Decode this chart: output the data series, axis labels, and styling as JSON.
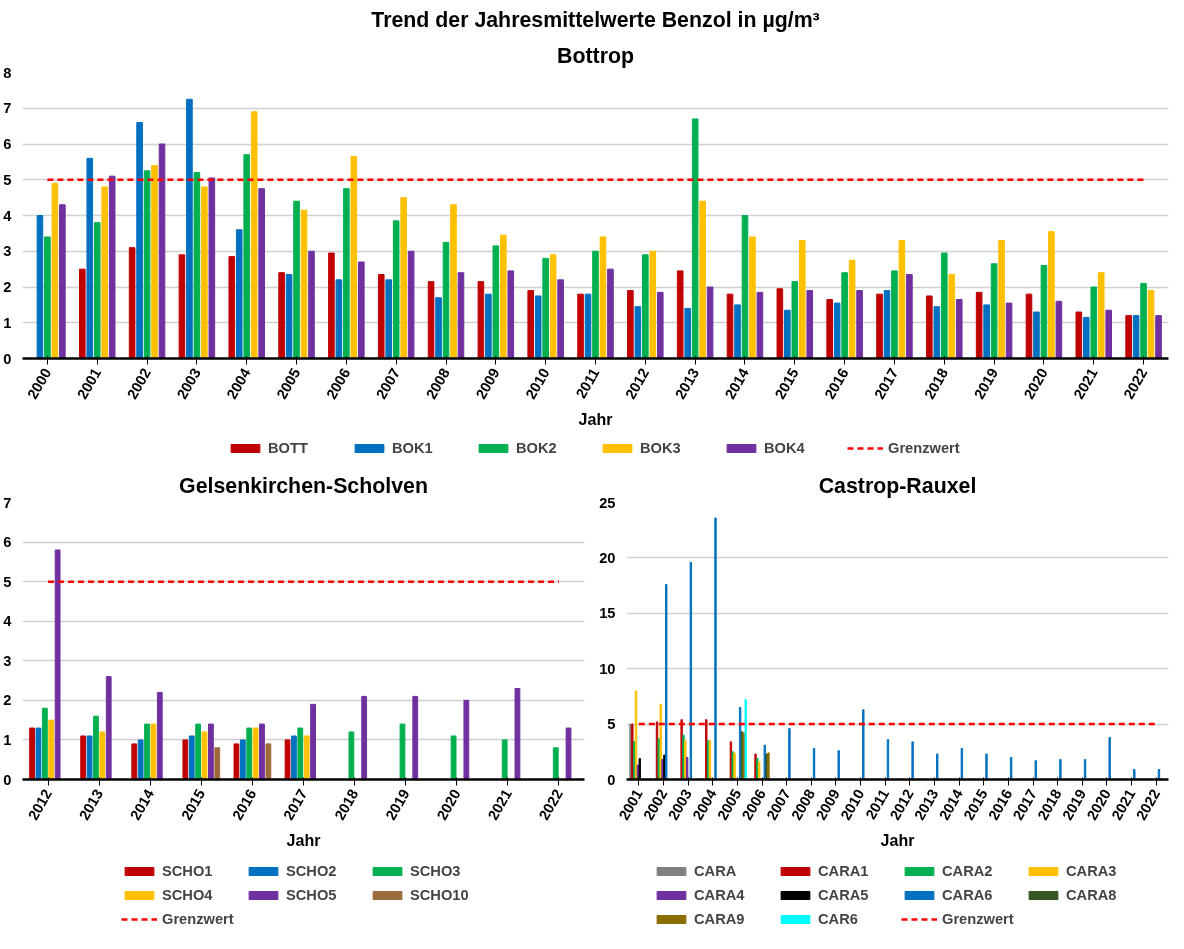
{
  "chart_data": [
    {
      "type": "bar",
      "title": "Trend der Jahresmittelwerte Benzol in µg/m³",
      "subtitle": "Bottrop",
      "xlabel": "Jahr",
      "categories": [
        "2000",
        "2001",
        "2002",
        "2003",
        "2004",
        "2005",
        "2006",
        "2007",
        "2008",
        "2009",
        "2010",
        "2011",
        "2012",
        "2013",
        "2014",
        "2015",
        "2016",
        "2017",
        "2018",
        "2019",
        "2020",
        "2021",
        "2022"
      ],
      "series": [
        {
          "name": "BOTT",
          "color": "#c00000",
          "values": [
            null,
            2.5,
            3.1,
            2.9,
            2.85,
            2.4,
            2.95,
            2.35,
            2.15,
            2.15,
            1.9,
            1.8,
            1.9,
            2.45,
            1.8,
            1.95,
            1.65,
            1.8,
            1.75,
            1.85,
            1.8,
            1.3,
            1.2
          ]
        },
        {
          "name": "BOK1",
          "color": "#0070c0",
          "values": [
            4.0,
            5.6,
            6.6,
            7.25,
            3.6,
            2.35,
            2.2,
            2.2,
            1.7,
            1.8,
            1.75,
            1.8,
            1.45,
            1.4,
            1.5,
            1.35,
            1.55,
            1.9,
            1.45,
            1.5,
            1.3,
            1.15,
            1.2
          ]
        },
        {
          "name": "BOK2",
          "color": "#00b050",
          "values": [
            3.4,
            3.8,
            5.25,
            5.2,
            5.7,
            4.4,
            4.75,
            3.85,
            3.25,
            3.15,
            2.8,
            3.0,
            2.9,
            6.7,
            4.0,
            2.15,
            2.4,
            2.45,
            2.95,
            2.65,
            2.6,
            2.0,
            2.1
          ]
        },
        {
          "name": "BOK3",
          "color": "#ffc000",
          "values": [
            4.9,
            4.8,
            5.4,
            4.8,
            6.9,
            4.15,
            5.65,
            4.5,
            4.3,
            3.45,
            2.9,
            3.4,
            3.0,
            4.4,
            3.4,
            3.3,
            2.75,
            3.3,
            2.35,
            3.3,
            3.55,
            2.4,
            1.9
          ]
        },
        {
          "name": "BOK4",
          "color": "#7030a0",
          "values": [
            4.3,
            5.1,
            6.0,
            5.05,
            4.75,
            3.0,
            2.7,
            3.0,
            2.4,
            2.45,
            2.2,
            2.5,
            1.85,
            2.0,
            1.85,
            1.9,
            1.9,
            2.35,
            1.65,
            1.55,
            1.6,
            1.35,
            1.2
          ]
        }
      ],
      "ref_lines": [
        {
          "axis": "y",
          "value": 5,
          "label": "Grenzwert",
          "color": "#ff0000",
          "line_style": "dashed"
        }
      ],
      "ylim": [
        0,
        8
      ],
      "yticks": [
        0,
        1,
        2,
        3,
        4,
        5,
        6,
        7,
        8
      ],
      "grid": "y",
      "legend": "bottom"
    },
    {
      "type": "bar",
      "title": "Gelsenkirchen-Scholven",
      "xlabel": "Jahr",
      "categories": [
        "2012",
        "2013",
        "2014",
        "2015",
        "2016",
        "2017",
        "2018",
        "2019",
        "2020",
        "2021",
        "2022"
      ],
      "series": [
        {
          "name": "SCHO1",
          "color": "#c00000",
          "values": [
            1.3,
            1.1,
            0.9,
            1.0,
            0.9,
            1.0,
            null,
            null,
            null,
            null,
            null
          ]
        },
        {
          "name": "SCHO2",
          "color": "#0070c0",
          "values": [
            1.3,
            1.1,
            1.0,
            1.1,
            1.0,
            1.1,
            null,
            null,
            null,
            null,
            null
          ]
        },
        {
          "name": "SCHO3",
          "color": "#00b050",
          "values": [
            1.8,
            1.6,
            1.4,
            1.4,
            1.3,
            1.3,
            1.2,
            1.4,
            1.1,
            1.0,
            0.8
          ]
        },
        {
          "name": "SCHO4",
          "color": "#ffc000",
          "values": [
            1.5,
            1.2,
            1.4,
            1.2,
            1.3,
            1.1,
            null,
            null,
            null,
            null,
            null
          ]
        },
        {
          "name": "SCHO5",
          "color": "#7030a0",
          "values": [
            5.8,
            2.6,
            2.2,
            1.4,
            1.4,
            1.9,
            2.1,
            2.1,
            2.0,
            2.3,
            1.3
          ]
        },
        {
          "name": "SCHO10",
          "color": "#9c6b3c",
          "values": [
            null,
            null,
            null,
            0.8,
            0.9,
            null,
            null,
            null,
            null,
            null,
            null
          ]
        }
      ],
      "ref_lines": [
        {
          "axis": "y",
          "value": 5,
          "label": "Grenzwert",
          "color": "#ff0000",
          "line_style": "dashed"
        }
      ],
      "ylim": [
        0,
        7
      ],
      "yticks": [
        0,
        1,
        2,
        3,
        4,
        5,
        6,
        7
      ],
      "grid": "y",
      "legend": "bottom"
    },
    {
      "type": "bar",
      "title": "Castrop-Rauxel",
      "xlabel": "Jahr",
      "categories": [
        "2001",
        "2002",
        "2003",
        "2004",
        "2005",
        "2006",
        "2007",
        "2008",
        "2009",
        "2010",
        "2011",
        "2012",
        "2013",
        "2014",
        "2015",
        "2016",
        "2017",
        "2018",
        "2019",
        "2020",
        "2021",
        "2022"
      ],
      "series": [
        {
          "name": "CARA",
          "color": "#808080",
          "values": [
            5.0,
            null,
            null,
            null,
            null,
            null,
            null,
            null,
            null,
            null,
            null,
            null,
            null,
            null,
            null,
            null,
            null,
            null,
            null,
            null,
            null,
            null
          ]
        },
        {
          "name": "CARA1",
          "color": "#c00000",
          "values": [
            5.0,
            5.2,
            5.4,
            5.4,
            3.4,
            2.3,
            null,
            null,
            null,
            null,
            null,
            null,
            null,
            null,
            null,
            null,
            null,
            null,
            null,
            null,
            null,
            null
          ]
        },
        {
          "name": "CARA2",
          "color": "#00b050",
          "values": [
            3.4,
            3.7,
            4.0,
            3.5,
            2.5,
            1.9,
            null,
            null,
            null,
            null,
            null,
            null,
            null,
            null,
            null,
            null,
            null,
            null,
            null,
            null,
            null,
            null
          ]
        },
        {
          "name": "CARA3",
          "color": "#ffc000",
          "values": [
            8.0,
            6.8,
            3.5,
            3.5,
            2.4,
            1.6,
            null,
            null,
            null,
            null,
            null,
            null,
            null,
            null,
            null,
            null,
            null,
            null,
            null,
            null,
            null,
            null
          ]
        },
        {
          "name": "CARA4",
          "color": "#7030a0",
          "values": [
            1.3,
            1.8,
            2.0,
            null,
            null,
            null,
            null,
            null,
            null,
            null,
            null,
            null,
            null,
            null,
            null,
            null,
            null,
            null,
            null,
            null,
            null,
            null
          ]
        },
        {
          "name": "CARA5",
          "color": "#000000",
          "values": [
            1.9,
            2.2,
            null,
            null,
            null,
            null,
            null,
            null,
            null,
            null,
            null,
            null,
            null,
            null,
            null,
            null,
            null,
            null,
            null,
            null,
            null,
            null
          ]
        },
        {
          "name": "CARA6",
          "color": "#0070c0",
          "values": [
            null,
            17.6,
            19.6,
            23.6,
            6.5,
            3.1,
            4.6,
            2.8,
            2.6,
            6.3,
            3.6,
            3.4,
            2.3,
            2.8,
            2.3,
            2.0,
            1.7,
            1.8,
            1.8,
            3.8,
            0.9,
            0.9
          ]
        },
        {
          "name": "CARA8",
          "color": "#375623",
          "values": [
            null,
            null,
            null,
            null,
            4.3,
            2.3,
            null,
            null,
            null,
            null,
            null,
            null,
            null,
            null,
            null,
            null,
            null,
            null,
            null,
            null,
            null,
            null
          ]
        },
        {
          "name": "CARA9",
          "color": "#8c6d00",
          "values": [
            null,
            null,
            null,
            null,
            4.2,
            2.4,
            null,
            null,
            null,
            null,
            null,
            null,
            null,
            null,
            null,
            null,
            null,
            null,
            null,
            null,
            null,
            null
          ]
        },
        {
          "name": "CAR6",
          "color": "#00ffff",
          "values": [
            null,
            null,
            null,
            null,
            7.2,
            null,
            null,
            null,
            null,
            null,
            null,
            null,
            null,
            null,
            null,
            null,
            null,
            null,
            null,
            null,
            null,
            null
          ]
        }
      ],
      "ref_lines": [
        {
          "axis": "y",
          "value": 5,
          "label": "Grenzwert",
          "color": "#ff0000",
          "line_style": "dashed"
        }
      ],
      "ylim": [
        0,
        25
      ],
      "yticks": [
        0,
        5,
        10,
        15,
        20,
        25
      ],
      "grid": "y",
      "legend": "bottom"
    }
  ]
}
